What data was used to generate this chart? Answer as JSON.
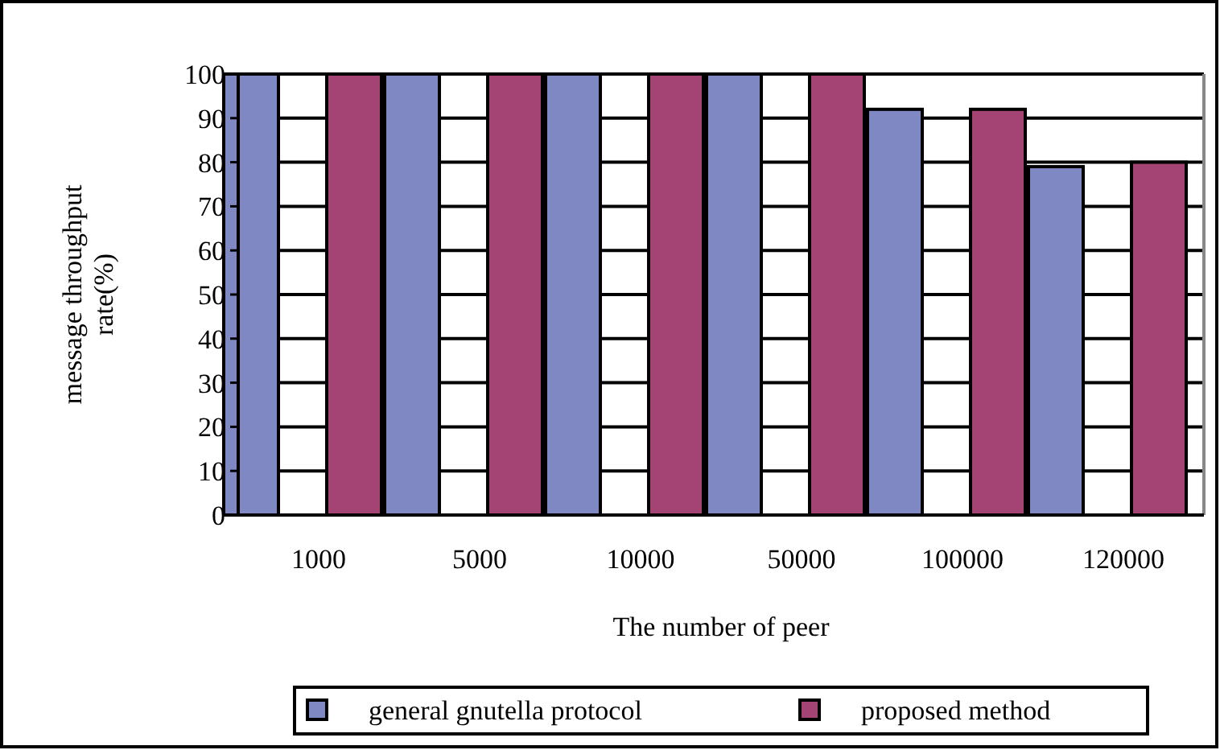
{
  "chart_data": {
    "type": "bar",
    "xlabel": "The number of peer",
    "ylabel": "message throughput rate(%)",
    "categories": [
      "1000",
      "5000",
      "10000",
      "50000",
      "100000",
      "120000"
    ],
    "series": [
      {
        "name": "general gnutella protocol",
        "color": "#8088c4",
        "values": [
          100,
          100,
          100,
          100,
          92,
          79
        ]
      },
      {
        "name": "proposed method",
        "color": "#a44474",
        "values": [
          100,
          100,
          100,
          100,
          92,
          80
        ]
      }
    ],
    "ylim": [
      0,
      100
    ],
    "yticks": [
      0,
      10,
      20,
      30,
      40,
      50,
      60,
      70,
      80,
      90,
      100
    ],
    "grid": "y",
    "legend": "bottom"
  }
}
